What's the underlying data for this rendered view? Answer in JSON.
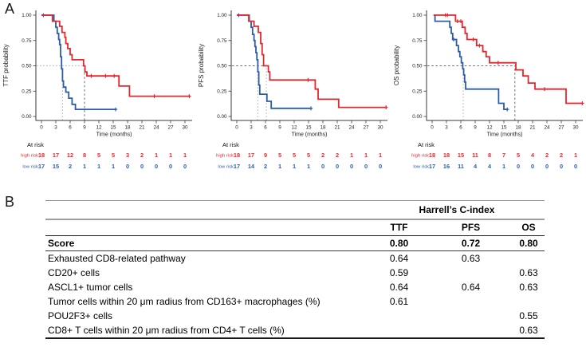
{
  "figure": {
    "panel_a": "A",
    "panel_b": "B"
  },
  "colors": {
    "high_risk": "#e5262c",
    "low_risk": "#2c5ca8",
    "axis": "#3a3a3a",
    "tick_text": "#1a1a1a"
  },
  "labels": {
    "at_risk": "At risk",
    "high_risk": "high risk",
    "low_risk": "low risk"
  },
  "chart_data": [
    {
      "id": "ttf",
      "type": "line",
      "variant": "kaplan-meier-step",
      "ylabel": "TTF probability",
      "xlabel": "Time (months)",
      "xticks": [
        0,
        3,
        6,
        9,
        12,
        15,
        18,
        21,
        24,
        27,
        30
      ],
      "yticks": [
        {
          "v": 1.0,
          "label": "1.00"
        },
        {
          "v": 0.75,
          "label": "0.75"
        },
        {
          "v": 0.5,
          "label": "0.50"
        },
        {
          "v": 0.25,
          "label": "0.25"
        },
        {
          "v": 0.0,
          "label": "0.00"
        }
      ],
      "xlim": [
        0,
        31.5
      ],
      "ylim": [
        0,
        1
      ],
      "series": [
        {
          "name": "high risk",
          "color": "high_risk",
          "steps": [
            [
              0,
              1.0
            ],
            [
              2.3,
              0.94
            ],
            [
              3.8,
              0.89
            ],
            [
              4.3,
              0.83
            ],
            [
              4.9,
              0.78
            ],
            [
              5.1,
              0.72
            ],
            [
              5.5,
              0.67
            ],
            [
              6.0,
              0.61
            ],
            [
              6.4,
              0.56
            ],
            [
              8.8,
              0.5
            ],
            [
              9.1,
              0.44
            ],
            [
              9.5,
              0.4
            ],
            [
              16.2,
              0.3
            ],
            [
              18.4,
              0.2
            ]
          ],
          "end": 31.0,
          "censors": [
            [
              10.4,
              0.4
            ],
            [
              13.4,
              0.4
            ],
            [
              15.2,
              0.4
            ],
            [
              23.6,
              0.2
            ],
            [
              30.9,
              0.2
            ]
          ]
        },
        {
          "name": "low risk",
          "color": "low_risk",
          "steps": [
            [
              0,
              1.0
            ],
            [
              2.6,
              0.94
            ],
            [
              3.0,
              0.88
            ],
            [
              3.3,
              0.82
            ],
            [
              3.6,
              0.76
            ],
            [
              3.8,
              0.71
            ],
            [
              4.0,
              0.59
            ],
            [
              4.2,
              0.47
            ],
            [
              4.4,
              0.35
            ],
            [
              4.6,
              0.29
            ],
            [
              5.1,
              0.24
            ],
            [
              5.7,
              0.18
            ],
            [
              6.4,
              0.12
            ],
            [
              7.1,
              0.07
            ]
          ],
          "end": 15.6,
          "censors": [
            [
              0.4,
              1.0
            ],
            [
              15.5,
              0.07
            ]
          ]
        }
      ],
      "medians": {
        "h": {
          "y": 0.5,
          "x2": 9.0,
          "tone": "light"
        },
        "v": [
          {
            "x": 4.4,
            "tone": "light"
          },
          {
            "x": 9.0,
            "tone": "dark"
          }
        ]
      },
      "at_risk": {
        "high": [
          18,
          17,
          12,
          8,
          5,
          5,
          3,
          2,
          1,
          1,
          1
        ],
        "low": [
          17,
          15,
          2,
          1,
          1,
          1,
          0,
          0,
          0,
          0,
          0
        ]
      }
    },
    {
      "id": "pfs",
      "type": "line",
      "variant": "kaplan-meier-step",
      "ylabel": "PFS probability",
      "xlabel": "Time (months)",
      "xticks": [
        0,
        3,
        6,
        9,
        12,
        15,
        18,
        21,
        24,
        27,
        30
      ],
      "yticks": [
        {
          "v": 1.0,
          "label": "1.00"
        },
        {
          "v": 0.75,
          "label": "0.75"
        },
        {
          "v": 0.5,
          "label": "0.50"
        },
        {
          "v": 0.25,
          "label": "0.25"
        },
        {
          "v": 0.0,
          "label": "0.00"
        }
      ],
      "xlim": [
        0,
        31.5
      ],
      "ylim": [
        0,
        1
      ],
      "series": [
        {
          "name": "high risk",
          "color": "high_risk",
          "steps": [
            [
              0,
              1.0
            ],
            [
              2.5,
              0.94
            ],
            [
              3.6,
              0.89
            ],
            [
              4.5,
              0.83
            ],
            [
              5.0,
              0.72
            ],
            [
              5.3,
              0.61
            ],
            [
              5.6,
              0.5
            ],
            [
              6.6,
              0.44
            ],
            [
              6.9,
              0.36
            ],
            [
              16.4,
              0.27
            ],
            [
              17.0,
              0.17
            ],
            [
              21.3,
              0.09
            ]
          ],
          "end": 31.3,
          "censors": [
            [
              14.9,
              0.36
            ],
            [
              31.2,
              0.09
            ]
          ]
        },
        {
          "name": "low risk",
          "color": "low_risk",
          "steps": [
            [
              0,
              1.0
            ],
            [
              2.6,
              0.94
            ],
            [
              3.0,
              0.88
            ],
            [
              3.3,
              0.81
            ],
            [
              3.6,
              0.75
            ],
            [
              3.8,
              0.69
            ],
            [
              4.0,
              0.63
            ],
            [
              4.2,
              0.56
            ],
            [
              4.4,
              0.44
            ],
            [
              4.6,
              0.31
            ],
            [
              4.8,
              0.22
            ],
            [
              6.3,
              0.15
            ],
            [
              7.2,
              0.08
            ]
          ],
          "end": 15.6,
          "censors": [
            [
              0.4,
              1.0
            ],
            [
              15.5,
              0.08
            ]
          ]
        }
      ],
      "medians": {
        "h": {
          "y": 0.5,
          "x2": 6.2,
          "tone": "dark"
        },
        "v": [
          {
            "x": 4.4,
            "tone": "light"
          },
          {
            "x": 6.2,
            "tone": "light"
          }
        ]
      },
      "at_risk": {
        "high": [
          18,
          17,
          9,
          5,
          5,
          5,
          2,
          2,
          1,
          1,
          1
        ],
        "low": [
          17,
          14,
          2,
          1,
          1,
          1,
          0,
          0,
          0,
          0,
          0
        ]
      }
    },
    {
      "id": "os",
      "type": "line",
      "variant": "kaplan-meier-step",
      "ylabel": "OS probability",
      "xlabel": "Time (months)",
      "xticks": [
        0,
        3,
        6,
        9,
        12,
        15,
        18,
        21,
        24,
        27,
        30
      ],
      "yticks": [
        {
          "v": 1.0,
          "label": "1.00"
        },
        {
          "v": 0.75,
          "label": "0.75"
        },
        {
          "v": 0.5,
          "label": "0.50"
        },
        {
          "v": 0.25,
          "label": "0.25"
        },
        {
          "v": 0.0,
          "label": "0.00"
        }
      ],
      "xlim": [
        0,
        31.5
      ],
      "ylim": [
        0,
        1
      ],
      "series": [
        {
          "name": "high risk",
          "color": "high_risk",
          "steps": [
            [
              0.3,
              1.0
            ],
            [
              4.9,
              0.94
            ],
            [
              6.3,
              0.88
            ],
            [
              6.9,
              0.82
            ],
            [
              7.3,
              0.76
            ],
            [
              9.3,
              0.7
            ],
            [
              10.6,
              0.64
            ],
            [
              11.3,
              0.59
            ],
            [
              12.0,
              0.53
            ],
            [
              17.5,
              0.46
            ],
            [
              19.0,
              0.4
            ],
            [
              20.1,
              0.33
            ],
            [
              21.5,
              0.27
            ],
            [
              28.0,
              0.13
            ]
          ],
          "end": 31.5,
          "censors": [
            [
              2.8,
              1.0
            ],
            [
              3.2,
              1.0
            ],
            [
              5.3,
              0.94
            ],
            [
              6.0,
              0.94
            ],
            [
              8.6,
              0.76
            ],
            [
              9.9,
              0.7
            ],
            [
              13.8,
              0.53
            ],
            [
              23.5,
              0.27
            ],
            [
              31.4,
              0.13
            ]
          ]
        },
        {
          "name": "low risk",
          "color": "low_risk",
          "steps": [
            [
              0.3,
              1.0
            ],
            [
              0.6,
              0.94
            ],
            [
              3.7,
              0.88
            ],
            [
              4.0,
              0.82
            ],
            [
              4.3,
              0.76
            ],
            [
              5.1,
              0.7
            ],
            [
              5.5,
              0.64
            ],
            [
              5.8,
              0.59
            ],
            [
              6.1,
              0.53
            ],
            [
              6.4,
              0.47
            ],
            [
              6.6,
              0.41
            ],
            [
              6.8,
              0.34
            ],
            [
              7.0,
              0.27
            ],
            [
              13.9,
              0.13
            ],
            [
              15.0,
              0.07
            ]
          ],
          "end": 15.8,
          "censors": [
            [
              4.5,
              0.76
            ],
            [
              15.7,
              0.07
            ]
          ]
        }
      ],
      "medians": {
        "h": {
          "y": 0.5,
          "x2": 17.3,
          "tone": "dark"
        },
        "v": [
          {
            "x": 6.5,
            "tone": "light"
          },
          {
            "x": 17.3,
            "tone": "dark"
          }
        ]
      },
      "at_risk": {
        "high": [
          18,
          18,
          15,
          11,
          8,
          7,
          5,
          4,
          2,
          2,
          1
        ],
        "low": [
          17,
          16,
          11,
          4,
          4,
          1,
          0,
          0,
          0,
          0,
          0
        ]
      }
    }
  ],
  "cindex_table": {
    "title": "Harrell’s C-index",
    "columns": [
      "TTF",
      "PFS",
      "OS"
    ],
    "rows": [
      {
        "label": "Score",
        "ttf": "0.80",
        "pfs": "0.72",
        "os": "0.80",
        "bold": true
      },
      {
        "label": "Exhausted CD8-related pathway",
        "ttf": "0.64",
        "pfs": "0.63",
        "os": "",
        "bold": false
      },
      {
        "label": "CD20+ cells",
        "ttf": "0.59",
        "pfs": "",
        "os": "0.63",
        "bold": false
      },
      {
        "label": "ASCL1+ tumor cells",
        "ttf": "0.64",
        "pfs": "0.64",
        "os": "0.63",
        "bold": false
      },
      {
        "label": "Tumor cells within 20 μm radius from CD163+ macrophages (%)",
        "ttf": "0.61",
        "pfs": "",
        "os": "",
        "bold": false
      },
      {
        "label": "POU2F3+ cells",
        "ttf": "",
        "pfs": "",
        "os": "0.55",
        "bold": false
      },
      {
        "label": "CD8+ T cells within 20 μm radius from CD4+ T cells (%)",
        "ttf": "",
        "pfs": "",
        "os": "0.63",
        "bold": false
      }
    ]
  }
}
